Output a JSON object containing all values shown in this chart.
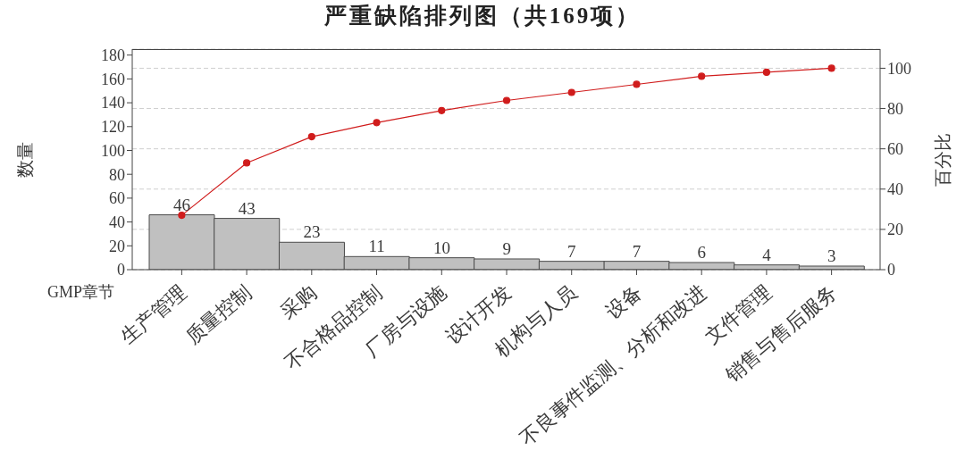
{
  "chart_data": {
    "type": "bar",
    "title": "严重缺陷排列图（共169项）",
    "xlabel": "GMP章节",
    "ylabel": "数量",
    "y2label": "百分比",
    "categories": [
      "生产管理",
      "质量控制",
      "采购",
      "不合格品控制",
      "厂房与设施",
      "设计开发",
      "机构与人员",
      "设备",
      "不良事件监测、分析和改进",
      "文件管理",
      "销售与售后服务"
    ],
    "series": [
      {
        "color": "#c0c0c0",
        "data_labels": true,
        "values": [
          46,
          43,
          23,
          11,
          10,
          9,
          7,
          7,
          6,
          4,
          3
        ]
      },
      {
        "type": "line",
        "axis": "y2",
        "color": "#d01c1c",
        "marker": "circle",
        "values": [
          27,
          53,
          66,
          73,
          79,
          84,
          88,
          92,
          96,
          98,
          100
        ]
      }
    ],
    "ylim": [
      0,
      185
    ],
    "yticks": [
      0,
      20,
      40,
      60,
      80,
      100,
      120,
      140,
      160,
      180
    ],
    "y2lim": [
      0,
      109.5
    ],
    "y2ticks": [
      0,
      20,
      40,
      60,
      80,
      100
    ],
    "grid": "y2"
  }
}
